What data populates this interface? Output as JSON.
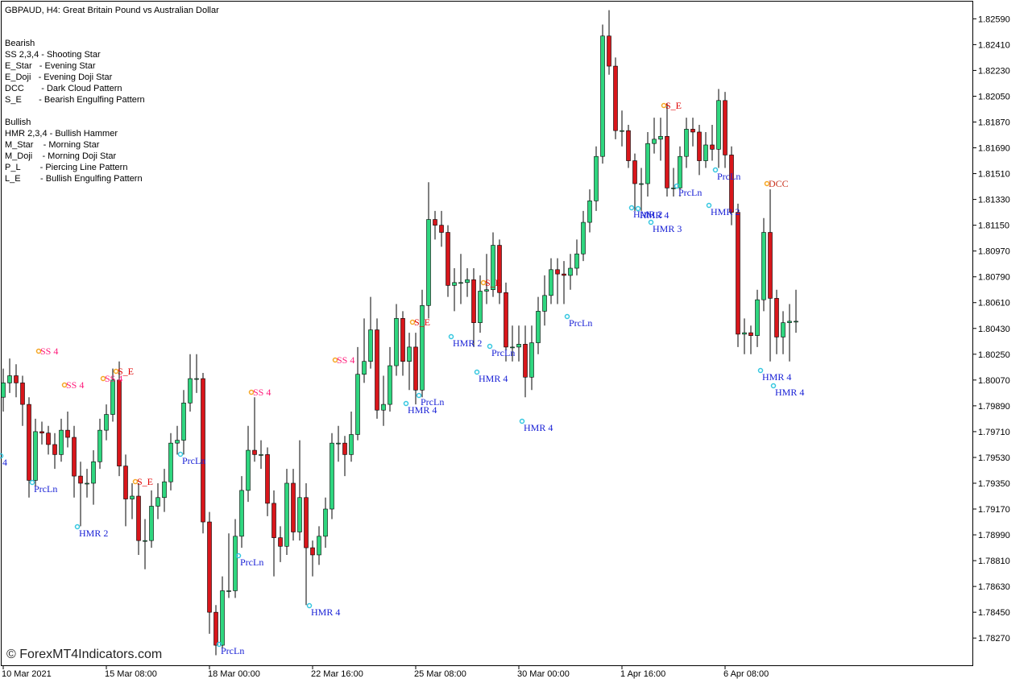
{
  "header": {
    "title": "GBPAUD, H4:  Great Britain Pound vs Australian Dollar"
  },
  "legend_text": [
    "Bearish",
    "SS 2,3,4 - Shooting Star",
    "E_Star   - Evening Star",
    "E_Doji   - Evening Doji Star",
    "DCC       - Dark Cloud Pattern",
    "S_E       - Bearish Engulfing Pattern",
    "Bullish",
    "HMR 2,3,4 - Bullish Hammer",
    "M_Star    - Morning Star",
    "M_Doji    - Morning Doji Star",
    "P_L        - Piercing Line Pattern",
    "L_E        - Bullish Engulfing Pattern"
  ],
  "watermark": "© ForexMT4Indicators.com",
  "chart_data": {
    "type": "candlestick",
    "categories": [
      "10 Mar 2021",
      null,
      null,
      null,
      null,
      null,
      null,
      null,
      null,
      null,
      null,
      null,
      null,
      null,
      null,
      null,
      "15 Mar 08:00",
      null,
      null,
      null,
      null,
      null,
      null,
      null,
      null,
      null,
      null,
      null,
      null,
      null,
      null,
      null,
      "18 Mar 00:00",
      null,
      null,
      null,
      null,
      null,
      null,
      null,
      null,
      null,
      null,
      null,
      null,
      null,
      null,
      null,
      "22 Mar 16:00",
      null,
      null,
      null,
      null,
      null,
      null,
      null,
      null,
      null,
      null,
      null,
      null,
      null,
      null,
      null,
      "25 Mar 08:00",
      null,
      null,
      null,
      null,
      null,
      null,
      null,
      null,
      null,
      null,
      null,
      null,
      null,
      null,
      null,
      "30 Mar 00:00",
      null,
      null,
      null,
      null,
      null,
      null,
      null,
      null,
      null,
      null,
      null,
      null,
      null,
      null,
      null,
      "1 Apr 16:00",
      null,
      null,
      null,
      null,
      null,
      null,
      null,
      null,
      null,
      null,
      null,
      null,
      null,
      null,
      null,
      "6 Apr 08:00",
      null,
      null,
      null,
      null,
      null,
      null,
      null,
      null,
      null,
      null,
      null
    ],
    "open": [
      1.7995,
      1.8005,
      1.801,
      1.8005,
      1.799,
      1.7937,
      1.7971,
      1.797,
      1.7962,
      1.7955,
      1.7972,
      1.7967,
      1.794,
      1.7935,
      1.7935,
      1.795,
      1.7972,
      1.7983,
      1.8007,
      1.7947,
      1.7924,
      1.7926,
      1.7895,
      1.7895,
      1.7919,
      1.7925,
      1.7936,
      1.7963,
      1.7965,
      1.7991,
      1.8008,
      1.8008,
      1.7908,
      1.7845,
      1.7822,
      1.786,
      1.786,
      1.7898,
      1.793,
      1.7958,
      1.7955,
      1.7955,
      1.7921,
      1.7897,
      1.7891,
      1.7935,
      1.7901,
      1.7925,
      1.789,
      1.7885,
      1.7898,
      1.7917,
      1.7963,
      1.7963,
      1.7955,
      1.7969,
      1.8011,
      1.802,
      1.8042,
      1.7986,
      1.799,
      1.8017,
      1.805,
      1.802,
      1.803,
      1.8,
      1.8059,
      1.8119,
      1.8115,
      1.811,
      1.8073,
      1.8075,
      1.8075,
      1.8077,
      1.8047,
      1.8069,
      1.807,
      1.8101,
      1.8068,
      1.803,
      1.803,
      1.8032,
      1.8009,
      1.8033,
      1.8055,
      1.8066,
      1.8084,
      1.8081,
      1.808,
      1.8085,
      1.8095,
      1.8117,
      1.8132,
      1.8163,
      1.8247,
      1.8226,
      1.8181,
      1.8181,
      1.816,
      1.8144,
      1.8144,
      1.8172,
      1.8175,
      1.8177,
      1.8141,
      1.8141,
      1.8163,
      1.8182,
      1.818,
      1.816,
      1.8171,
      1.8168,
      1.8202,
      1.8164,
      1.8124,
      1.8039,
      1.804,
      1.8038,
      1.8063,
      1.811,
      1.8064,
      1.8037,
      1.8047,
      1.8048
    ],
    "high": [
      1.8015,
      1.8022,
      1.8018,
      1.801,
      1.7995,
      1.798,
      1.7978,
      1.7975,
      1.797,
      1.798,
      1.7985,
      1.7975,
      1.795,
      1.7945,
      1.7958,
      1.798,
      1.799,
      1.8015,
      1.802,
      1.7955,
      1.7935,
      1.7935,
      1.791,
      1.793,
      1.7935,
      1.7945,
      1.797,
      1.7975,
      1.8,
      1.8025,
      1.8025,
      1.8012,
      1.7915,
      1.785,
      1.787,
      1.79,
      1.791,
      1.794,
      1.7975,
      1.7995,
      1.7965,
      1.796,
      1.793,
      1.7905,
      1.7945,
      1.7945,
      1.7965,
      1.7935,
      1.7895,
      1.7905,
      1.7925,
      1.797,
      1.7975,
      1.7968,
      1.7985,
      1.803,
      1.805,
      1.8065,
      1.805,
      1.801,
      1.803,
      1.806,
      1.8055,
      1.804,
      1.804,
      1.807,
      1.8145,
      1.8125,
      1.8125,
      1.8115,
      1.8085,
      1.8095,
      1.8085,
      1.8085,
      1.808,
      1.8095,
      1.811,
      1.8105,
      1.8075,
      1.8045,
      1.8045,
      1.8045,
      1.8045,
      1.8065,
      1.808,
      1.8092,
      1.8092,
      1.809,
      1.8095,
      1.8105,
      1.8125,
      1.814,
      1.817,
      1.8255,
      1.8265,
      1.8232,
      1.8195,
      1.8185,
      1.8165,
      1.8155,
      1.818,
      1.819,
      1.819,
      1.82,
      1.8155,
      1.817,
      1.819,
      1.819,
      1.8185,
      1.818,
      1.8185,
      1.821,
      1.8208,
      1.817,
      1.813,
      1.805,
      1.8045,
      1.807,
      1.812,
      1.814,
      1.807,
      1.8055,
      1.806,
      1.807
    ],
    "low": [
      1.7985,
      1.7998,
      1.7995,
      1.7975,
      1.7925,
      1.793,
      1.7962,
      1.7955,
      1.7945,
      1.795,
      1.796,
      1.7925,
      1.7905,
      1.7925,
      1.792,
      1.7945,
      1.7965,
      1.7978,
      1.794,
      1.7905,
      1.791,
      1.7885,
      1.7875,
      1.789,
      1.791,
      1.7915,
      1.793,
      1.7955,
      1.7955,
      1.7985,
      1.7998,
      1.79,
      1.783,
      1.7815,
      1.7818,
      1.7855,
      1.7855,
      1.789,
      1.7922,
      1.795,
      1.7945,
      1.7912,
      1.787,
      1.788,
      1.7885,
      1.7895,
      1.7895,
      1.785,
      1.787,
      1.7878,
      1.789,
      1.791,
      1.795,
      1.794,
      1.795,
      1.7965,
      1.8005,
      1.8015,
      1.798,
      1.7975,
      1.7985,
      1.801,
      1.801,
      1.8,
      1.799,
      1.7995,
      1.805,
      1.8105,
      1.81,
      1.8065,
      1.8055,
      1.806,
      1.8065,
      1.803,
      1.804,
      1.806,
      1.8065,
      1.806,
      1.802,
      1.802,
      1.802,
      1.7995,
      1.8,
      1.8025,
      1.8045,
      1.806,
      1.806,
      1.806,
      1.807,
      1.808,
      1.809,
      1.811,
      1.8125,
      1.8158,
      1.822,
      1.8175,
      1.817,
      1.8155,
      1.8125,
      1.8125,
      1.8135,
      1.8165,
      1.816,
      1.8135,
      1.8135,
      1.8135,
      1.8155,
      1.817,
      1.815,
      1.8155,
      1.816,
      1.8155,
      1.8155,
      1.8115,
      1.803,
      1.8025,
      1.8025,
      1.803,
      1.8055,
      1.802,
      1.8025,
      1.8025,
      1.802,
      1.804
    ],
    "close": [
      1.8005,
      1.801,
      1.8005,
      1.799,
      1.7937,
      1.7971,
      1.797,
      1.7962,
      1.7955,
      1.7972,
      1.7967,
      1.794,
      1.7935,
      1.7935,
      1.795,
      1.7972,
      1.7983,
      1.8007,
      1.7947,
      1.7924,
      1.7926,
      1.7895,
      1.7895,
      1.7919,
      1.7925,
      1.7936,
      1.7963,
      1.7965,
      1.7991,
      1.8008,
      1.8008,
      1.7908,
      1.7845,
      1.7822,
      1.786,
      1.786,
      1.7898,
      1.793,
      1.7958,
      1.7955,
      1.7955,
      1.7921,
      1.7897,
      1.7891,
      1.7935,
      1.7901,
      1.7925,
      1.789,
      1.7885,
      1.7898,
      1.7917,
      1.7963,
      1.7963,
      1.7955,
      1.7969,
      1.8011,
      1.802,
      1.8042,
      1.7986,
      1.799,
      1.8017,
      1.805,
      1.802,
      1.803,
      1.8,
      1.8059,
      1.8119,
      1.8115,
      1.811,
      1.8073,
      1.8075,
      1.8075,
      1.8077,
      1.8047,
      1.8069,
      1.807,
      1.8101,
      1.8068,
      1.803,
      1.803,
      1.8032,
      1.8009,
      1.8033,
      1.8055,
      1.8066,
      1.8084,
      1.8081,
      1.808,
      1.8085,
      1.8095,
      1.8117,
      1.8132,
      1.8163,
      1.8247,
      1.8226,
      1.8181,
      1.8181,
      1.816,
      1.8144,
      1.8144,
      1.8172,
      1.8175,
      1.8177,
      1.8141,
      1.8141,
      1.8163,
      1.8182,
      1.818,
      1.816,
      1.8171,
      1.8168,
      1.8202,
      1.8164,
      1.8124,
      1.8039,
      1.804,
      1.8038,
      1.8063,
      1.811,
      1.8064,
      1.8037,
      1.8047,
      1.8048,
      1.8048
    ],
    "up_color": "#2fd67f",
    "down_color": "#d8161b",
    "ylim": [
      1.7808,
      1.8271
    ],
    "yticks": [
      {
        "value": 1.8259,
        "label": "1.82590"
      },
      {
        "value": 1.8241,
        "label": "1.82410"
      },
      {
        "value": 1.8223,
        "label": "1.82230"
      },
      {
        "value": 1.8205,
        "label": "1.82050"
      },
      {
        "value": 1.8187,
        "label": "1.81870"
      },
      {
        "value": 1.8169,
        "label": "1.81690"
      },
      {
        "value": 1.8151,
        "label": "1.81510"
      },
      {
        "value": 1.8133,
        "label": "1.81330"
      },
      {
        "value": 1.8115,
        "label": "1.81150"
      },
      {
        "value": 1.8097,
        "label": "1.80970"
      },
      {
        "value": 1.8079,
        "label": "1.80790"
      },
      {
        "value": 1.8061,
        "label": "1.80610"
      },
      {
        "value": 1.8043,
        "label": "1.80430"
      },
      {
        "value": 1.8025,
        "label": "1.80250"
      },
      {
        "value": 1.8007,
        "label": "1.80070"
      },
      {
        "value": 1.7989,
        "label": "1.79890"
      },
      {
        "value": 1.7971,
        "label": "1.79710"
      },
      {
        "value": 1.7953,
        "label": "1.79530"
      },
      {
        "value": 1.7935,
        "label": "1.79350"
      },
      {
        "value": 1.7917,
        "label": "1.79170"
      },
      {
        "value": 1.7899,
        "label": "1.78990"
      },
      {
        "value": 1.7881,
        "label": "1.78810"
      },
      {
        "value": 1.7863,
        "label": "1.78630"
      },
      {
        "value": 1.7845,
        "label": "1.78450"
      },
      {
        "value": 1.7827,
        "label": "1.78270"
      }
    ],
    "annotations": [
      "4",
      "PrcLn",
      "HMR 2",
      "SS 4",
      "SS 4",
      "SS 4",
      "S_E",
      "S_E",
      "PrcLn",
      "PrcLn",
      "PrcLn",
      "SS 4",
      "HMR 4",
      "SS 4",
      "S_E",
      "HMR 4",
      "PrcLn",
      "HMR 2",
      "S_E",
      "PrcLn",
      "HMR 4",
      "HMR 4",
      "PrcLn",
      "S_E",
      "HMR 2",
      "HMR 4",
      "HMR 3",
      "PrcLn",
      "PrcLn",
      "HMR 2",
      "DCC",
      "HMR 4",
      "HMR 4"
    ]
  }
}
